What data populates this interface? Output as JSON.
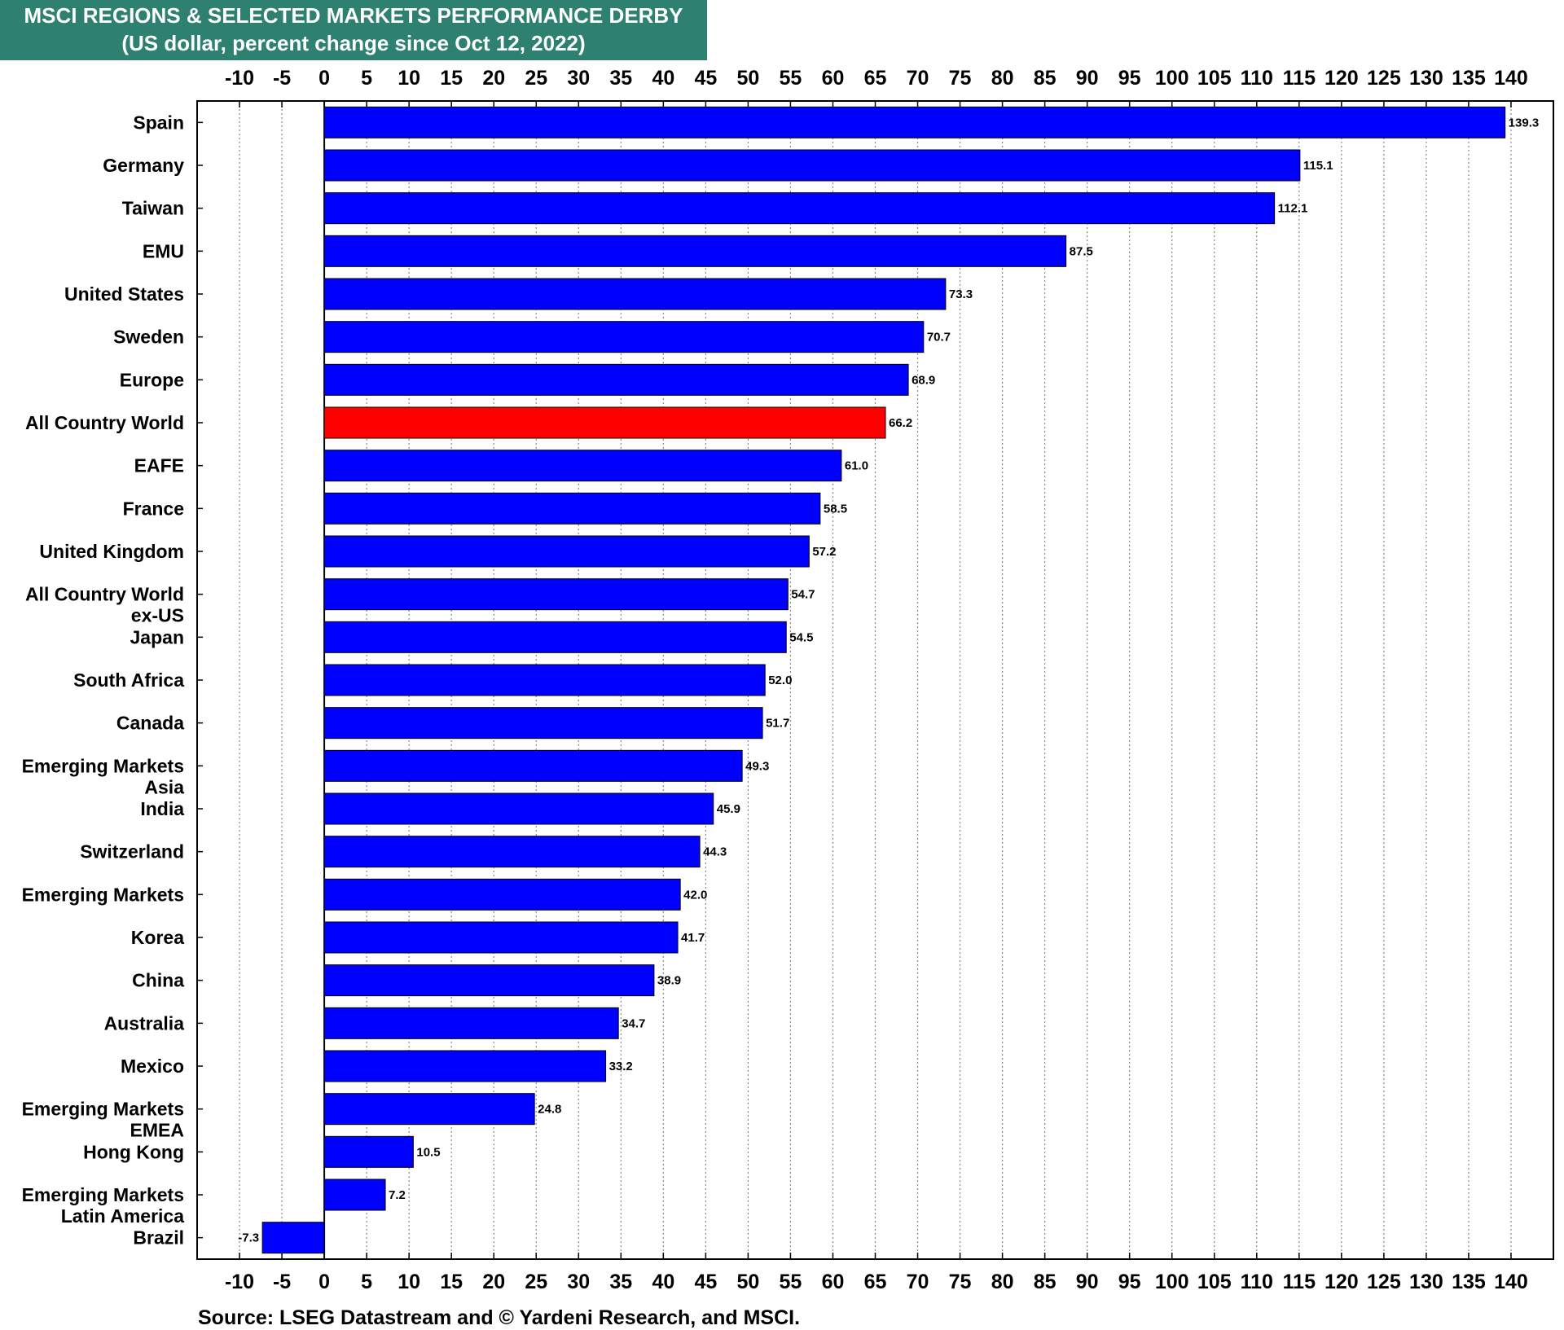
{
  "title_line1": "MSCI REGIONS & SELECTED MARKETS PERFORMANCE DERBY",
  "title_line2": "(US dollar, percent change since Oct 12, 2022)",
  "source": "Source: LSEG Datastream and © Yardeni Research, and MSCI.",
  "colors": {
    "title_bg": "#2e8070",
    "bar": "#0000ff",
    "highlight_bar": "#ff0000"
  },
  "chart_data": {
    "type": "bar",
    "orientation": "horizontal",
    "title": "MSCI REGIONS & SELECTED MARKETS PERFORMANCE DERBY",
    "subtitle": "(US dollar, percent change since Oct 12, 2022)",
    "xlim": [
      -15,
      145
    ],
    "xticks": [
      -10,
      -5,
      0,
      5,
      10,
      15,
      20,
      25,
      30,
      35,
      40,
      45,
      50,
      55,
      60,
      65,
      70,
      75,
      80,
      85,
      90,
      95,
      100,
      105,
      110,
      115,
      120,
      125,
      130,
      135,
      140
    ],
    "grid": "vertical dotted",
    "highlight": "All Country World",
    "categories": [
      [
        "Spain"
      ],
      [
        "Germany"
      ],
      [
        "Taiwan"
      ],
      [
        "EMU"
      ],
      [
        "United States"
      ],
      [
        "Sweden"
      ],
      [
        "Europe"
      ],
      [
        "All Country World"
      ],
      [
        "EAFE"
      ],
      [
        "France"
      ],
      [
        "United Kingdom"
      ],
      [
        "All Country World",
        "ex-US"
      ],
      [
        "Japan"
      ],
      [
        "South Africa"
      ],
      [
        "Canada"
      ],
      [
        "Emerging Markets",
        "Asia"
      ],
      [
        "India"
      ],
      [
        "Switzerland"
      ],
      [
        "Emerging Markets"
      ],
      [
        "Korea"
      ],
      [
        "China"
      ],
      [
        "Australia"
      ],
      [
        "Mexico"
      ],
      [
        "Emerging Markets",
        "EMEA"
      ],
      [
        "Hong Kong"
      ],
      [
        "Emerging Markets",
        "Latin America"
      ],
      [
        "Brazil"
      ]
    ],
    "values": [
      139.3,
      115.1,
      112.1,
      87.5,
      73.3,
      70.7,
      68.9,
      66.2,
      61.0,
      58.5,
      57.2,
      54.7,
      54.5,
      52.0,
      51.7,
      49.3,
      45.9,
      44.3,
      42.0,
      41.7,
      38.9,
      34.7,
      33.2,
      24.8,
      10.5,
      7.2,
      -7.3
    ],
    "value_labels": [
      "139.3",
      "115.1",
      "112.1",
      "87.5",
      "73.3",
      "70.7",
      "68.9",
      "66.2",
      "61.0",
      "58.5",
      "57.2",
      "54.7",
      "54.5",
      "52.0",
      "51.7",
      "49.3",
      "45.9",
      "44.3",
      "42.0",
      "41.7",
      "38.9",
      "34.7",
      "33.2",
      "24.8",
      "10.5",
      "7.2",
      "-7.3"
    ]
  }
}
